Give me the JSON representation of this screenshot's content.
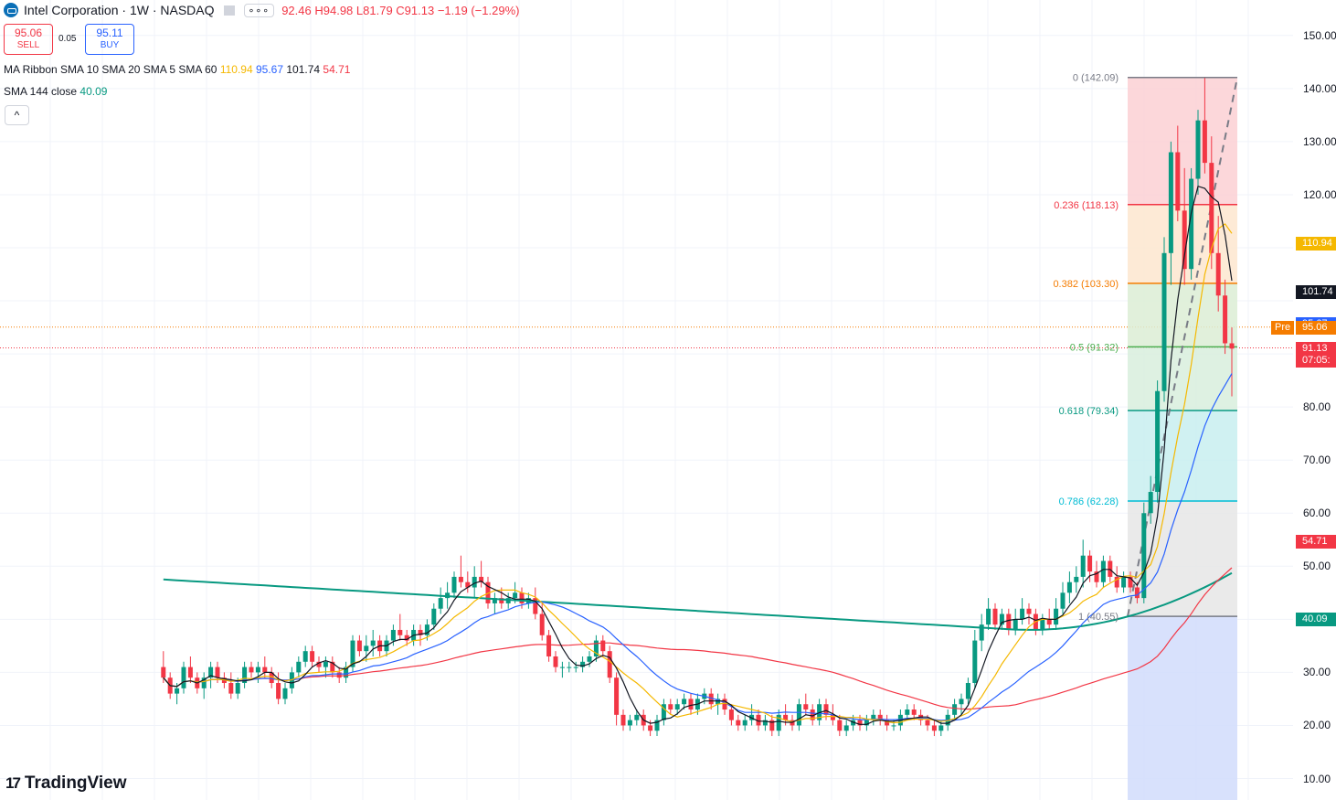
{
  "header": {
    "title": "Intel Corporation · 1W · NASDAQ",
    "menu_label": "∘∘∘",
    "ohlc_open": "92.46",
    "ohlc_high": "H94.98",
    "ohlc_low": "L81.79",
    "ohlc_close": "C91.13",
    "ohlc_change": "−1.19 (−1.29%)"
  },
  "trade": {
    "sell_price": "95.06",
    "sell_label": "SELL",
    "spread": "0.05",
    "buy_price": "95.11",
    "buy_label": "BUY"
  },
  "indicators": {
    "ribbon_name": "MA Ribbon SMA 10 SMA 20 SMA 5 SMA 60",
    "ribbon_v1": "110.94",
    "ribbon_v2": "95.67",
    "ribbon_v3": "101.74",
    "ribbon_v4": "54.71",
    "sma144_name": "SMA 144 close",
    "sma144_v": "40.09",
    "collapse_icon": "^"
  },
  "branding": {
    "name": "TradingView"
  },
  "colors": {
    "up": "#089981",
    "down": "#f23645",
    "sma5": "#131722",
    "sma10": "#f5b800",
    "sma20": "#2962ff",
    "sma60": "#f23645",
    "sma144": "#089981"
  },
  "chart_data": {
    "type": "candlestick",
    "title": "Intel Corporation · 1W · NASDAQ",
    "ylim": [
      8,
      155
    ],
    "y_ticks": [
      "150.00",
      "140.00",
      "130.00",
      "120.00",
      "80.00",
      "70.00",
      "60.00",
      "50.00",
      "30.00",
      "20.00",
      "10.00"
    ],
    "price_badges": [
      {
        "label": "110.94",
        "value": 110.94,
        "color": "#f5b800"
      },
      {
        "label": "101.74",
        "value": 101.74,
        "color": "#131722"
      },
      {
        "label": "95.67",
        "value": 95.67,
        "color": "#2962ff"
      },
      {
        "label": "95.06",
        "prefix": "Pre",
        "value": 95.06,
        "color": "#f57c00"
      },
      {
        "label": "91.13",
        "sub": "07:05:",
        "value": 91.13,
        "color": "#f23645"
      },
      {
        "label": "54.71",
        "value": 54.71,
        "color": "#f23645"
      },
      {
        "label": "40.09",
        "value": 40.09,
        "color": "#089981"
      }
    ],
    "fibonacci": {
      "high": 142.09,
      "low": 40.55,
      "levels": [
        {
          "label": "0 (142.09)",
          "value": 142.09,
          "color": "#787b86",
          "fill": "#fbd0d4"
        },
        {
          "label": "0.236 (118.13)",
          "value": 118.13,
          "color": "#f23645",
          "fill": "#fde6cf"
        },
        {
          "label": "0.382 (103.30)",
          "value": 103.3,
          "color": "#f57c00",
          "fill": "#dcedd5"
        },
        {
          "label": "0.5 (91.32)",
          "value": 91.32,
          "color": "#4caf50",
          "fill": "#d8eedd"
        },
        {
          "label": "0.618 (79.34)",
          "value": 79.34,
          "color": "#089981",
          "fill": "#c8eef0"
        },
        {
          "label": "0.786 (62.28)",
          "value": 62.28,
          "color": "#00bcd4",
          "fill": "#e6e6e6"
        },
        {
          "label": "1 (40.55)",
          "value": 40.55,
          "color": "#787b86",
          "fill": "#d1dcfb"
        }
      ]
    },
    "candles": [
      [
        31,
        34,
        28,
        29
      ],
      [
        29,
        30,
        25,
        26
      ],
      [
        26,
        28,
        24,
        27
      ],
      [
        27,
        32,
        26,
        31
      ],
      [
        31,
        33,
        28,
        29
      ],
      [
        29,
        30,
        26,
        27
      ],
      [
        27,
        30,
        25,
        29
      ],
      [
        29,
        32,
        27,
        31
      ],
      [
        31,
        32,
        28,
        29
      ],
      [
        29,
        30,
        27,
        28
      ],
      [
        28,
        30,
        25,
        26
      ],
      [
        26,
        29,
        25,
        28
      ],
      [
        28,
        32,
        27,
        31
      ],
      [
        31,
        32,
        29,
        30
      ],
      [
        30,
        32,
        28,
        31
      ],
      [
        31,
        33,
        29,
        30
      ],
      [
        30,
        31,
        27,
        28
      ],
      [
        28,
        30,
        24,
        25
      ],
      [
        25,
        28,
        24,
        27
      ],
      [
        27,
        31,
        26,
        30
      ],
      [
        30,
        33,
        29,
        32
      ],
      [
        32,
        35,
        31,
        34
      ],
      [
        34,
        35,
        31,
        32
      ],
      [
        32,
        33,
        30,
        31
      ],
      [
        31,
        33,
        29,
        32
      ],
      [
        32,
        33,
        29,
        30
      ],
      [
        30,
        31,
        28,
        29
      ],
      [
        29,
        32,
        28,
        31
      ],
      [
        31,
        37,
        30,
        36
      ],
      [
        36,
        37,
        33,
        34
      ],
      [
        34,
        37,
        32,
        35
      ],
      [
        35,
        38,
        33,
        36
      ],
      [
        36,
        37,
        33,
        34
      ],
      [
        34,
        37,
        33,
        36
      ],
      [
        36,
        39,
        35,
        38
      ],
      [
        38,
        41,
        36,
        37
      ],
      [
        37,
        38,
        35,
        36
      ],
      [
        36,
        39,
        35,
        38
      ],
      [
        38,
        39,
        35,
        37
      ],
      [
        37,
        40,
        36,
        39
      ],
      [
        39,
        43,
        38,
        42
      ],
      [
        42,
        46,
        41,
        44
      ],
      [
        44,
        47,
        42,
        45
      ],
      [
        45,
        49,
        44,
        48
      ],
      [
        48,
        52,
        46,
        47
      ],
      [
        47,
        49,
        45,
        46
      ],
      [
        46,
        50,
        44,
        48
      ],
      [
        48,
        51,
        46,
        47
      ],
      [
        47,
        48,
        42,
        43
      ],
      [
        43,
        45,
        41,
        44
      ],
      [
        44,
        46,
        42,
        43
      ],
      [
        43,
        45,
        42,
        44
      ],
      [
        44,
        47,
        43,
        45
      ],
      [
        45,
        46,
        42,
        43
      ],
      [
        43,
        45,
        42,
        44
      ],
      [
        44,
        46,
        40,
        41
      ],
      [
        41,
        43,
        36,
        37
      ],
      [
        37,
        38,
        32,
        33
      ],
      [
        33,
        34,
        30,
        31
      ],
      [
        31,
        32,
        29,
        31
      ],
      [
        31,
        32,
        30,
        31
      ],
      [
        31,
        32,
        30,
        31
      ],
      [
        31,
        33,
        30,
        32
      ],
      [
        32,
        34,
        31,
        33
      ],
      [
        33,
        37,
        32,
        36
      ],
      [
        36,
        37,
        33,
        34
      ],
      [
        34,
        35,
        28,
        29
      ],
      [
        29,
        30,
        20,
        22
      ],
      [
        22,
        23,
        19,
        20
      ],
      [
        20,
        22,
        19,
        21
      ],
      [
        21,
        23,
        20,
        22
      ],
      [
        22,
        23,
        19,
        20
      ],
      [
        20,
        21,
        18,
        19
      ],
      [
        19,
        22,
        18,
        21
      ],
      [
        21,
        25,
        20,
        24
      ],
      [
        24,
        25,
        22,
        23
      ],
      [
        23,
        25,
        22,
        24
      ],
      [
        24,
        26,
        23,
        25
      ],
      [
        25,
        26,
        22,
        23
      ],
      [
        23,
        26,
        22,
        25
      ],
      [
        25,
        27,
        24,
        26
      ],
      [
        26,
        27,
        23,
        24
      ],
      [
        24,
        26,
        22,
        25
      ],
      [
        25,
        26,
        22,
        23
      ],
      [
        23,
        24,
        20,
        21
      ],
      [
        21,
        22,
        19,
        20
      ],
      [
        20,
        22,
        19,
        21
      ],
      [
        21,
        24,
        20,
        22
      ],
      [
        22,
        23,
        19,
        20
      ],
      [
        20,
        22,
        19,
        21
      ],
      [
        21,
        22,
        18,
        19
      ],
      [
        19,
        23,
        18,
        22
      ],
      [
        22,
        24,
        20,
        21
      ],
      [
        21,
        22,
        19,
        20
      ],
      [
        20,
        25,
        19,
        24
      ],
      [
        24,
        26,
        22,
        23
      ],
      [
        23,
        24,
        20,
        21
      ],
      [
        21,
        25,
        20,
        24
      ],
      [
        24,
        25,
        21,
        22
      ],
      [
        22,
        24,
        20,
        21
      ],
      [
        21,
        22,
        18,
        19
      ],
      [
        19,
        21,
        18,
        20
      ],
      [
        20,
        22,
        19,
        21
      ],
      [
        21,
        22,
        19,
        20
      ],
      [
        20,
        22,
        19,
        21
      ],
      [
        21,
        23,
        20,
        22
      ],
      [
        22,
        23,
        20,
        21
      ],
      [
        21,
        22,
        19,
        20
      ],
      [
        20,
        21,
        19,
        20
      ],
      [
        20,
        23,
        19,
        22
      ],
      [
        22,
        24,
        21,
        23
      ],
      [
        23,
        24,
        21,
        22
      ],
      [
        22,
        23,
        20,
        21
      ],
      [
        21,
        22,
        19,
        20
      ],
      [
        20,
        21,
        18,
        19
      ],
      [
        19,
        21,
        18,
        20
      ],
      [
        20,
        23,
        19,
        22
      ],
      [
        22,
        25,
        21,
        24
      ],
      [
        24,
        26,
        22,
        25
      ],
      [
        25,
        29,
        24,
        28
      ],
      [
        28,
        38,
        27,
        36
      ],
      [
        36,
        41,
        34,
        39
      ],
      [
        39,
        44,
        38,
        42
      ],
      [
        42,
        43,
        38,
        39
      ],
      [
        39,
        42,
        38,
        41
      ],
      [
        41,
        42,
        37,
        38
      ],
      [
        38,
        42,
        37,
        40
      ],
      [
        40,
        44,
        39,
        42
      ],
      [
        42,
        43,
        39,
        41
      ],
      [
        41,
        42,
        37,
        38
      ],
      [
        38,
        41,
        37,
        40
      ],
      [
        40,
        42,
        38,
        39
      ],
      [
        39,
        44,
        38,
        42
      ],
      [
        42,
        47,
        41,
        45
      ],
      [
        45,
        49,
        43,
        47
      ],
      [
        47,
        50,
        45,
        48
      ],
      [
        48,
        55,
        46,
        52
      ],
      [
        52,
        53,
        47,
        49
      ],
      [
        49,
        51,
        46,
        47
      ],
      [
        47,
        52,
        46,
        51
      ],
      [
        51,
        52,
        47,
        48
      ],
      [
        48,
        50,
        45,
        46
      ],
      [
        46,
        49,
        45,
        48
      ],
      [
        48,
        49,
        45,
        46
      ],
      [
        46,
        47,
        43,
        44
      ],
      [
        44,
        62,
        43,
        60
      ],
      [
        60,
        67,
        58,
        64
      ],
      [
        64,
        85,
        62,
        83
      ],
      [
        83,
        112,
        81,
        109
      ],
      [
        109,
        130,
        103,
        128
      ],
      [
        128,
        133,
        115,
        117
      ],
      [
        117,
        125,
        103,
        106
      ],
      [
        106,
        125,
        104,
        123
      ],
      [
        123,
        136,
        120,
        134
      ],
      [
        134,
        142,
        124,
        126
      ],
      [
        126,
        131,
        106,
        109
      ],
      [
        109,
        116,
        98,
        101
      ],
      [
        101,
        104,
        90,
        92
      ],
      [
        92,
        95,
        82,
        91
      ]
    ]
  }
}
